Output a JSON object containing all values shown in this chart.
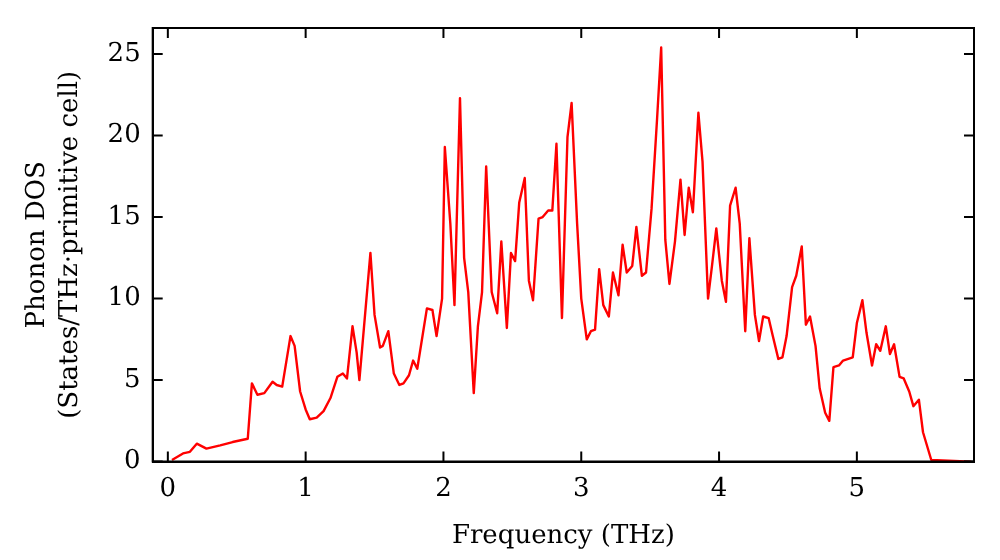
{
  "chart_data": {
    "type": "line",
    "xlabel": "Frequency (THz)",
    "ylabel": "Phonon DOS\n(States/THz·primitive cell)",
    "grid": false,
    "legend": false,
    "marker": "none",
    "line_style": "solid",
    "xlim": [
      -0.11,
      5.85
    ],
    "ylim": [
      0,
      26.6
    ],
    "xticks": [
      0,
      1,
      2,
      3,
      4,
      5
    ],
    "yticks": [
      0,
      5,
      10,
      15,
      20,
      25
    ],
    "series": [
      {
        "color": "#ff0000",
        "x": [
          0.03,
          0.11,
          0.16,
          0.21,
          0.28,
          0.38,
          0.47,
          0.58,
          0.61,
          0.65,
          0.7,
          0.76,
          0.79,
          0.83,
          0.89,
          0.92,
          0.96,
          1.0,
          1.03,
          1.08,
          1.13,
          1.18,
          1.23,
          1.27,
          1.3,
          1.34,
          1.37,
          1.39,
          1.47,
          1.5,
          1.54,
          1.56,
          1.6,
          1.64,
          1.68,
          1.71,
          1.75,
          1.78,
          1.81,
          1.88,
          1.92,
          1.95,
          1.99,
          2.01,
          2.05,
          2.08,
          2.12,
          2.15,
          2.18,
          2.22,
          2.25,
          2.28,
          2.31,
          2.35,
          2.39,
          2.42,
          2.46,
          2.49,
          2.52,
          2.55,
          2.59,
          2.62,
          2.65,
          2.69,
          2.72,
          2.76,
          2.79,
          2.82,
          2.86,
          2.9,
          2.93,
          2.97,
          3.0,
          3.04,
          3.07,
          3.1,
          3.13,
          3.16,
          3.2,
          3.23,
          3.27,
          3.3,
          3.33,
          3.37,
          3.4,
          3.44,
          3.47,
          3.51,
          3.55,
          3.58,
          3.61,
          3.64,
          3.68,
          3.72,
          3.75,
          3.78,
          3.81,
          3.85,
          3.88,
          3.92,
          3.95,
          3.98,
          4.02,
          4.05,
          4.08,
          4.12,
          4.15,
          4.19,
          4.22,
          4.26,
          4.29,
          4.32,
          4.36,
          4.39,
          4.43,
          4.46,
          4.49,
          4.53,
          4.56,
          4.6,
          4.63,
          4.66,
          4.7,
          4.73,
          4.77,
          4.8,
          4.83,
          4.87,
          4.9,
          4.97,
          5.0,
          5.04,
          5.07,
          5.11,
          5.14,
          5.17,
          5.21,
          5.24,
          5.27,
          5.31,
          5.34,
          5.38,
          5.41,
          5.45,
          5.48,
          5.54,
          5.83
        ],
        "values": [
          0.1,
          0.5,
          0.6,
          1.1,
          0.8,
          1.0,
          1.2,
          1.4,
          4.8,
          4.1,
          4.2,
          4.9,
          4.7,
          4.6,
          7.7,
          7.1,
          4.3,
          3.2,
          2.6,
          2.7,
          3.1,
          3.9,
          5.2,
          5.4,
          5.1,
          8.3,
          6.7,
          5.0,
          12.8,
          9.0,
          7.0,
          7.1,
          8.0,
          5.4,
          4.7,
          4.8,
          5.3,
          6.2,
          5.7,
          9.4,
          9.3,
          7.7,
          10.0,
          19.3,
          14.6,
          9.6,
          22.3,
          12.5,
          10.4,
          4.2,
          8.3,
          10.4,
          18.1,
          10.4,
          9.1,
          13.5,
          8.2,
          12.8,
          12.3,
          15.9,
          17.4,
          11.1,
          9.9,
          14.9,
          15.0,
          15.4,
          15.4,
          19.5,
          8.8,
          19.9,
          22.0,
          14.6,
          10.0,
          7.5,
          8.0,
          8.1,
          11.8,
          9.6,
          8.9,
          11.6,
          10.2,
          13.3,
          11.6,
          12.0,
          14.4,
          11.4,
          11.6,
          15.5,
          21.0,
          25.4,
          13.6,
          10.9,
          13.5,
          17.3,
          13.9,
          16.8,
          15.3,
          21.4,
          18.4,
          10.0,
          12.1,
          14.3,
          11.1,
          9.8,
          15.7,
          16.8,
          14.6,
          8.0,
          13.7,
          9.0,
          7.4,
          8.9,
          8.8,
          7.7,
          6.3,
          6.4,
          7.7,
          10.7,
          11.4,
          13.2,
          8.4,
          8.9,
          7.1,
          4.5,
          3.0,
          2.5,
          5.8,
          5.9,
          6.2,
          6.4,
          8.5,
          9.9,
          7.9,
          5.9,
          7.2,
          6.8,
          8.3,
          6.6,
          7.2,
          5.2,
          5.1,
          4.3,
          3.4,
          3.8,
          1.8,
          0.1,
          0
        ]
      }
    ]
  }
}
